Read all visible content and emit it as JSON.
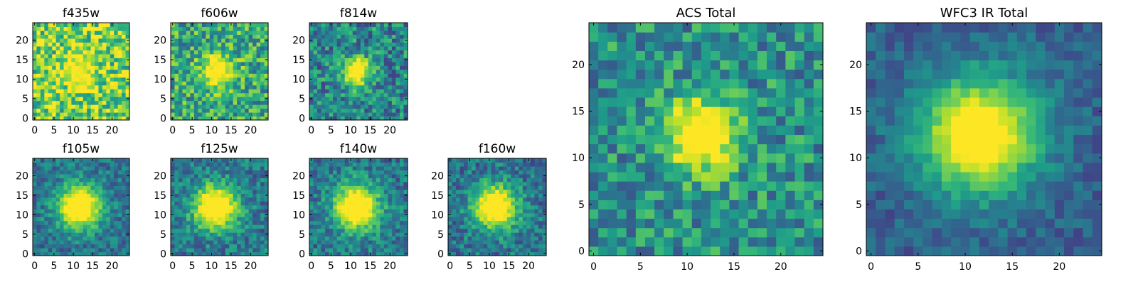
{
  "chart_data": [
    {
      "type": "heatmap",
      "title": "f435w",
      "grid_size": 25,
      "x_ticks": [
        "0",
        "5",
        "10",
        "15",
        "20"
      ],
      "y_ticks": [
        "0",
        "5",
        "10",
        "15",
        "20"
      ],
      "peak": [
        11.5,
        12.0
      ],
      "peak_level": 0.3,
      "peak_width": 3.0,
      "background_level": 0.78,
      "noise_level": 0.3,
      "colormap": "viridis"
    },
    {
      "type": "heatmap",
      "title": "f606w",
      "grid_size": 25,
      "x_ticks": [
        "0",
        "5",
        "10",
        "15",
        "20"
      ],
      "y_ticks": [
        "0",
        "5",
        "10",
        "15",
        "20"
      ],
      "peak": [
        11.5,
        12.0
      ],
      "peak_level": 0.55,
      "peak_width": 3.0,
      "background_level": 0.6,
      "noise_level": 0.28,
      "colormap": "viridis"
    },
    {
      "type": "heatmap",
      "title": "f814w",
      "grid_size": 25,
      "x_ticks": [
        "0",
        "5",
        "10",
        "15",
        "20"
      ],
      "y_ticks": [
        "0",
        "5",
        "10",
        "15",
        "20"
      ],
      "peak": [
        11.5,
        12.0
      ],
      "peak_level": 0.75,
      "peak_width": 2.6,
      "background_level": 0.45,
      "noise_level": 0.26,
      "colormap": "viridis"
    },
    {
      "type": "heatmap",
      "title": "f105w",
      "grid_size": 25,
      "x_ticks": [
        "0",
        "5",
        "10",
        "15",
        "20"
      ],
      "y_ticks": [
        "0",
        "5",
        "10",
        "15",
        "20"
      ],
      "peak": [
        11.5,
        12.0
      ],
      "peak_level": 0.85,
      "peak_width": 4.0,
      "background_level": 0.38,
      "noise_level": 0.18,
      "colormap": "viridis"
    },
    {
      "type": "heatmap",
      "title": "f125w",
      "grid_size": 25,
      "x_ticks": [
        "0",
        "5",
        "10",
        "15",
        "20"
      ],
      "y_ticks": [
        "0",
        "5",
        "10",
        "15",
        "20"
      ],
      "peak": [
        11.0,
        12.0
      ],
      "peak_level": 0.85,
      "peak_width": 4.0,
      "background_level": 0.4,
      "noise_level": 0.2,
      "colormap": "viridis"
    },
    {
      "type": "heatmap",
      "title": "f140w",
      "grid_size": 25,
      "x_ticks": [
        "0",
        "5",
        "10",
        "15",
        "20"
      ],
      "y_ticks": [
        "0",
        "5",
        "10",
        "15",
        "20"
      ],
      "peak": [
        11.5,
        12.0
      ],
      "peak_level": 0.85,
      "peak_width": 4.0,
      "background_level": 0.4,
      "noise_level": 0.2,
      "colormap": "viridis"
    },
    {
      "type": "heatmap",
      "title": "f160w",
      "grid_size": 25,
      "x_ticks": [
        "0",
        "5",
        "10",
        "15",
        "20"
      ],
      "y_ticks": [
        "0",
        "5",
        "10",
        "15",
        "20"
      ],
      "peak": [
        11.5,
        12.0
      ],
      "peak_level": 0.85,
      "peak_width": 4.0,
      "background_level": 0.38,
      "noise_level": 0.2,
      "colormap": "viridis"
    },
    {
      "type": "heatmap",
      "title": "ACS Total",
      "grid_size": 25,
      "x_ticks": [
        "0",
        "5",
        "10",
        "15",
        "20"
      ],
      "y_ticks": [
        "0",
        "5",
        "10",
        "15",
        "20"
      ],
      "peak": [
        11.5,
        12.5
      ],
      "peak_level": 0.7,
      "peak_width": 2.8,
      "background_level": 0.5,
      "noise_level": 0.24,
      "colormap": "viridis"
    },
    {
      "type": "heatmap",
      "title": "WFC3 IR Total",
      "grid_size": 25,
      "x_ticks": [
        "0",
        "5",
        "10",
        "15",
        "20"
      ],
      "y_ticks": [
        "0",
        "5",
        "10",
        "15",
        "20"
      ],
      "peak": [
        11.5,
        12.5
      ],
      "peak_level": 0.85,
      "peak_width": 4.5,
      "background_level": 0.3,
      "noise_level": 0.12,
      "colormap": "viridis"
    }
  ]
}
